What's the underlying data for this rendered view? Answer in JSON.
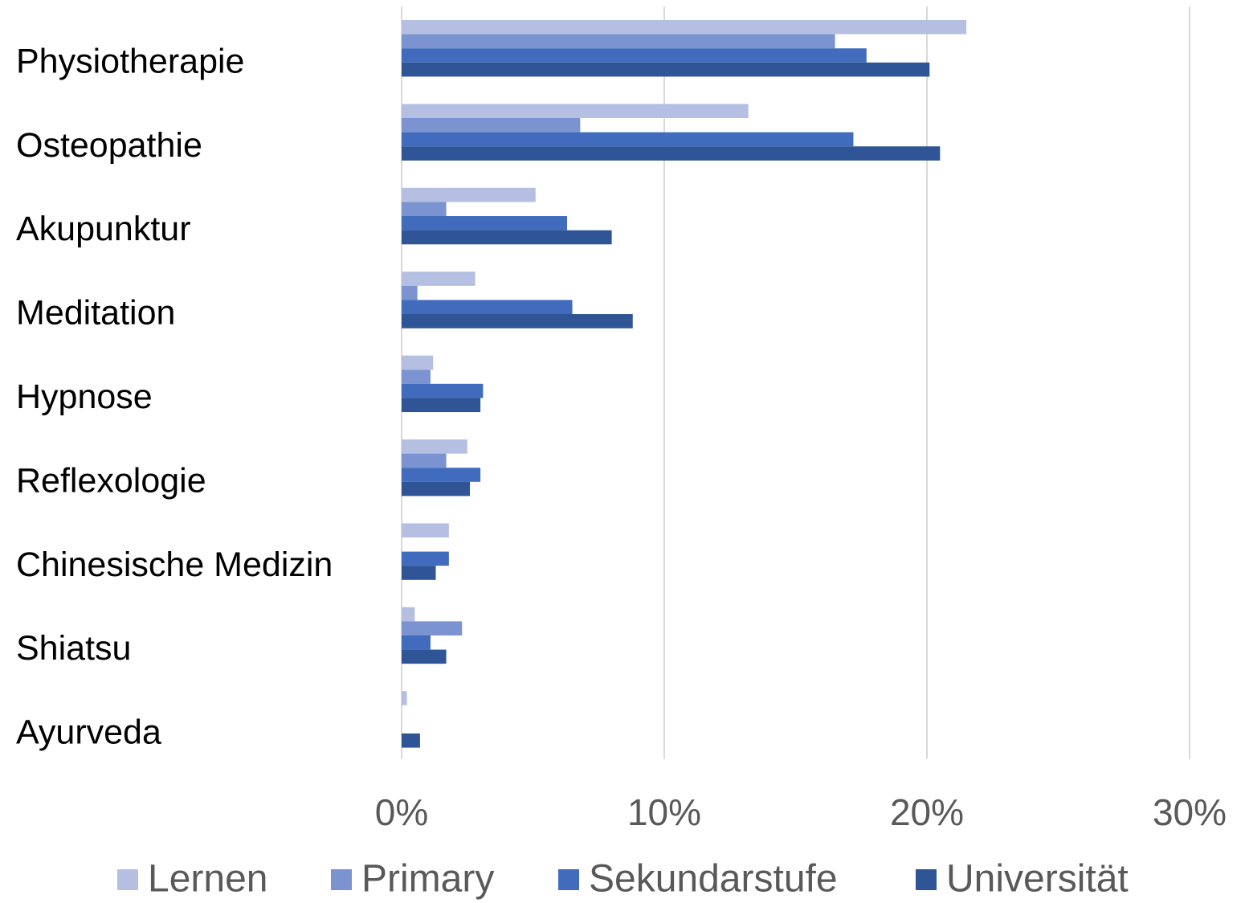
{
  "chart_data": {
    "type": "hbar",
    "categories": [
      "Physiotherapie",
      "Osteopathie",
      "Akupunktur",
      "Meditation",
      "Hypnose",
      "Reflexologie",
      "Chinesische Medizin",
      "Shiatsu",
      "Ayurveda"
    ],
    "series": [
      {
        "name": "Lernen",
        "color": "#b4bfe2",
        "values": [
          21.5,
          13.2,
          5.1,
          2.8,
          1.2,
          2.5,
          1.8,
          0.5,
          0.2
        ]
      },
      {
        "name": "Primary",
        "color": "#7b93d1",
        "values": [
          16.5,
          6.8,
          1.7,
          0.6,
          1.1,
          1.7,
          0,
          2.3,
          0
        ]
      },
      {
        "name": "Sekundarstufe",
        "color": "#416cbd",
        "values": [
          17.7,
          17.2,
          6.3,
          6.5,
          3.1,
          3.0,
          1.8,
          1.1,
          0
        ]
      },
      {
        "name": "Universität",
        "color": "#2f5597",
        "values": [
          20.1,
          20.5,
          8.0,
          8.8,
          3.0,
          2.6,
          1.3,
          1.7,
          0.7
        ]
      }
    ],
    "xlim": [
      0,
      30
    ],
    "xticks": [
      {
        "value": 0,
        "label": "0%"
      },
      {
        "value": 10,
        "label": "10%"
      },
      {
        "value": 20,
        "label": "20%"
      },
      {
        "value": 30,
        "label": "30%"
      }
    ],
    "grid": true,
    "legend": "bottom"
  }
}
